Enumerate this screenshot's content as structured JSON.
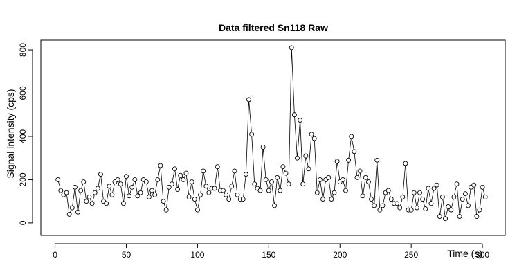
{
  "chart_data": {
    "type": "line",
    "title": "Data filtered Sn118 Raw",
    "x_label": "Time (s)",
    "y_label": "Signal intensity (cps)",
    "color": "#000000",
    "markers": "open-circle",
    "x": [
      2,
      4,
      6,
      8,
      10,
      12,
      14,
      16,
      18,
      20,
      22,
      24,
      26,
      28,
      30,
      32,
      34,
      36,
      38,
      40,
      42,
      44,
      46,
      48,
      50,
      52,
      54,
      56,
      58,
      60,
      62,
      64,
      66,
      68,
      70,
      72,
      74,
      76,
      78,
      80,
      82,
      84,
      86,
      88,
      90,
      92,
      94,
      96,
      98,
      100,
      102,
      104,
      106,
      108,
      110,
      112,
      114,
      116,
      118,
      120,
      122,
      124,
      126,
      128,
      130,
      132,
      134,
      136,
      138,
      140,
      142,
      144,
      146,
      148,
      150,
      152,
      154,
      156,
      158,
      160,
      162,
      164,
      166,
      168,
      170,
      172,
      174,
      176,
      178,
      180,
      182,
      184,
      186,
      188,
      190,
      192,
      194,
      196,
      198,
      200,
      202,
      204,
      206,
      208,
      210,
      212,
      214,
      216,
      218,
      220,
      222,
      224,
      226,
      228,
      230,
      232,
      234,
      236,
      238,
      240,
      242,
      244,
      246,
      248,
      250,
      252,
      254,
      256,
      258,
      260,
      262,
      264,
      266,
      268,
      270,
      272,
      274,
      276,
      278,
      280,
      282,
      284,
      286,
      288,
      290,
      292,
      294,
      296,
      298,
      300,
      302
    ],
    "values": [
      200,
      150,
      130,
      140,
      40,
      70,
      165,
      50,
      150,
      190,
      100,
      120,
      90,
      140,
      160,
      225,
      100,
      90,
      170,
      130,
      190,
      200,
      180,
      90,
      215,
      125,
      165,
      200,
      125,
      140,
      200,
      190,
      120,
      150,
      130,
      200,
      265,
      100,
      60,
      165,
      180,
      250,
      155,
      220,
      200,
      230,
      120,
      190,
      110,
      60,
      130,
      240,
      170,
      140,
      160,
      160,
      260,
      150,
      150,
      130,
      110,
      170,
      240,
      130,
      110,
      110,
      225,
      570,
      410,
      180,
      160,
      150,
      350,
      200,
      150,
      190,
      80,
      210,
      150,
      260,
      230,
      180,
      810,
      500,
      300,
      475,
      180,
      310,
      250,
      410,
      390,
      140,
      200,
      110,
      200,
      210,
      110,
      140,
      285,
      190,
      200,
      150,
      290,
      400,
      330,
      210,
      240,
      125,
      210,
      190,
      110,
      80,
      290,
      60,
      80,
      140,
      150,
      110,
      90,
      90,
      70,
      120,
      275,
      60,
      60,
      140,
      70,
      140,
      110,
      65,
      160,
      90,
      160,
      175,
      30,
      120,
      20,
      75,
      60,
      120,
      180,
      30,
      110,
      135,
      80,
      165,
      175,
      30,
      60,
      165,
      120
    ],
    "xlim": [
      -10,
      316
    ],
    "ylim": [
      -58,
      845
    ],
    "xticks": [
      0,
      50,
      100,
      150,
      200,
      250,
      300
    ],
    "yticks": [
      0,
      200,
      400,
      600,
      800
    ]
  }
}
